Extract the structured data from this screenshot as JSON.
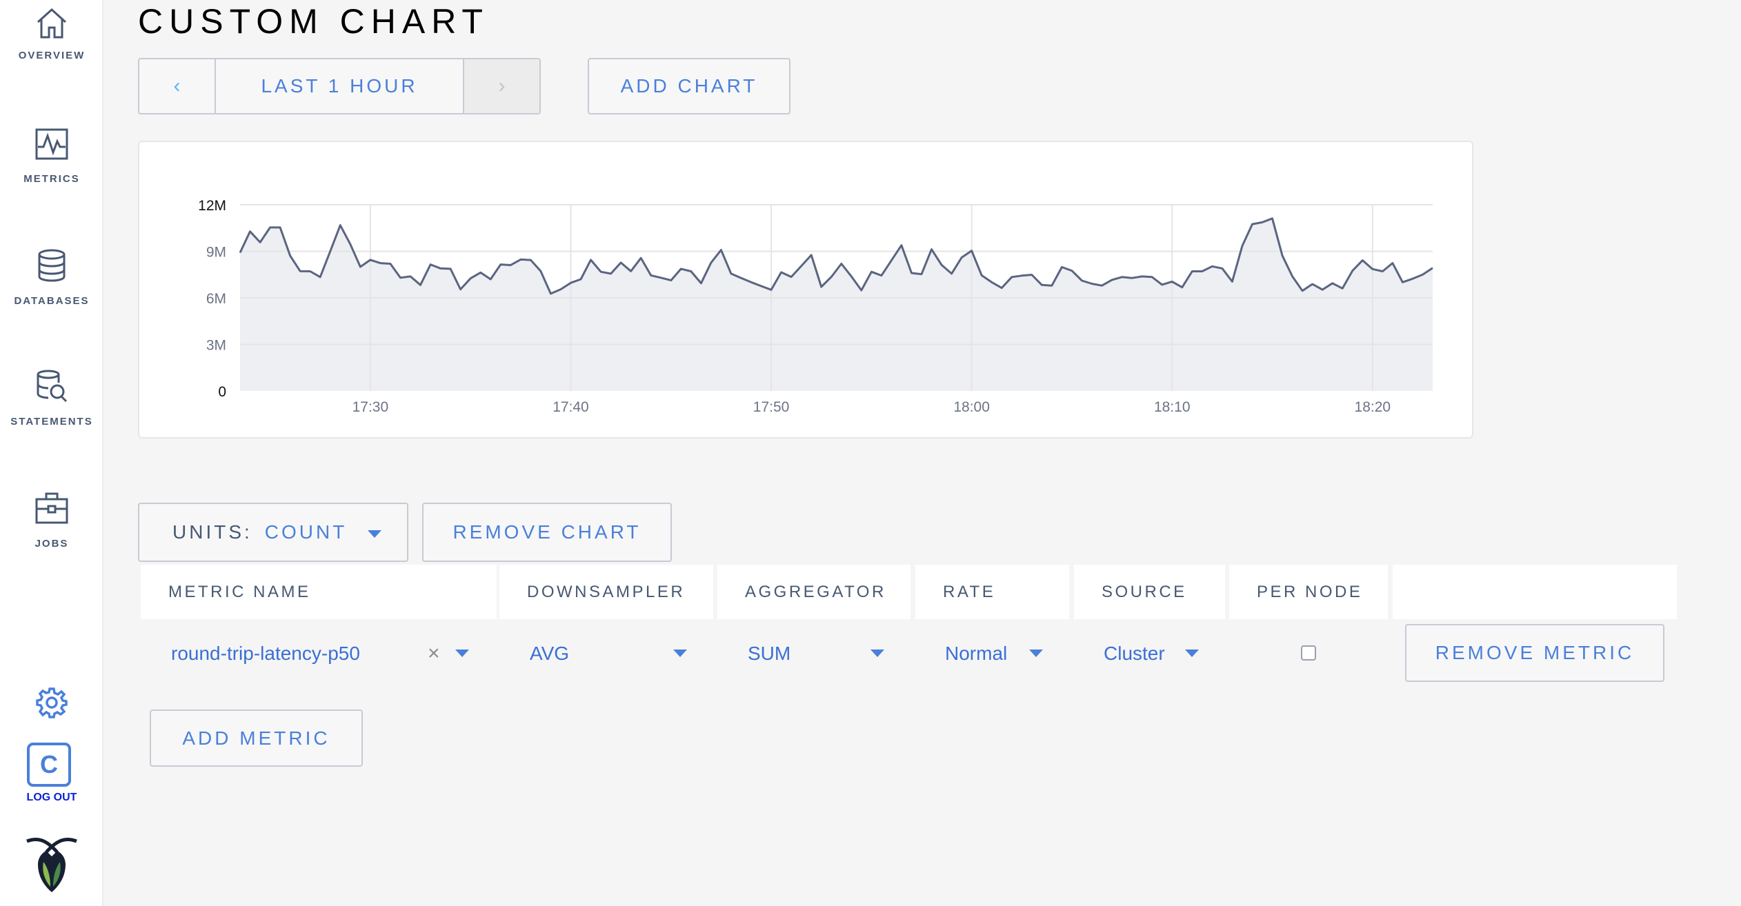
{
  "sidebar": {
    "items": [
      {
        "label": "OVERVIEW",
        "icon": "home-icon"
      },
      {
        "label": "METRICS",
        "icon": "activity-icon"
      },
      {
        "label": "DATABASES",
        "icon": "database-icon"
      },
      {
        "label": "STATEMENTS",
        "icon": "statements-search-icon"
      },
      {
        "label": "JOBS",
        "icon": "briefcase-icon"
      }
    ],
    "settings_icon": "gear-icon",
    "user_initial": "C",
    "logout_label": "LOG OUT",
    "logo": "cockroach-logo"
  },
  "header": {
    "title": "CUSTOM CHART"
  },
  "time_range": {
    "prev": "‹",
    "label": "LAST 1 HOUR",
    "next": "›"
  },
  "add_chart_label": "ADD CHART",
  "units": {
    "label": "UNITS:",
    "value": "COUNT"
  },
  "remove_chart_label": "REMOVE CHART",
  "table": {
    "headers": [
      "METRIC NAME",
      "DOWNSAMPLER",
      "AGGREGATOR",
      "RATE",
      "SOURCE",
      "PER NODE"
    ],
    "row": {
      "metric": "round-trip-latency-p50",
      "clear": "×",
      "downsampler": "AVG",
      "aggregator": "SUM",
      "rate": "Normal",
      "source": "Cluster",
      "per_node": false,
      "remove_label": "REMOVE METRIC"
    }
  },
  "add_metric_label": "ADD METRIC",
  "colors": {
    "accent": "#4a80d9",
    "line": "#5a6580",
    "area": "#eeeff3",
    "grid": "#e4e4e6"
  },
  "chart_data": {
    "type": "area",
    "title": "",
    "xlabel": "",
    "ylabel": "",
    "ylim": [
      0,
      12
    ],
    "xlim": [
      "17:23:30",
      "18:23:00"
    ],
    "grid": true,
    "y_ticks": [
      {
        "value": 0,
        "label": "0"
      },
      {
        "value": 3,
        "label": "3M"
      },
      {
        "value": 6,
        "label": "6M"
      },
      {
        "value": 9,
        "label": "9M"
      },
      {
        "value": 12,
        "label": "12M"
      }
    ],
    "x_ticks": [
      "17:30",
      "17:40",
      "17:50",
      "18:00",
      "18:10",
      "18:20"
    ],
    "series": [
      {
        "x": [
          "17:23:30",
          "17:24:00",
          "17:24:30",
          "17:25:00",
          "17:25:30",
          "17:26:00",
          "17:26:30",
          "17:27:00",
          "17:27:30",
          "17:28:00",
          "17:28:30",
          "17:29:00",
          "17:29:30",
          "17:30:00",
          "17:30:30",
          "17:31:00",
          "17:31:30",
          "17:32:00",
          "17:32:30",
          "17:33:00",
          "17:33:30",
          "17:34:00",
          "17:34:30",
          "17:35:00",
          "17:35:30",
          "17:36:00",
          "17:36:30",
          "17:37:00",
          "17:37:30",
          "17:38:00",
          "17:38:30",
          "17:39:00",
          "17:39:30",
          "17:40:00",
          "17:40:30",
          "17:41:00",
          "17:41:30",
          "17:42:00",
          "17:42:30",
          "17:43:00",
          "17:43:30",
          "17:44:00",
          "17:44:30",
          "17:45:00",
          "17:45:30",
          "17:46:00",
          "17:46:30",
          "17:47:00",
          "17:47:30",
          "17:48:00",
          "17:48:30",
          "17:49:00",
          "17:49:30",
          "17:50:00",
          "17:50:30",
          "17:51:00",
          "17:51:30",
          "17:52:00",
          "17:52:30",
          "17:53:00",
          "17:53:30",
          "17:54:00",
          "17:54:30",
          "17:55:00",
          "17:55:30",
          "17:56:00",
          "17:56:30",
          "17:57:00",
          "17:57:30",
          "17:58:00",
          "17:58:30",
          "17:59:00",
          "17:59:30",
          "18:00:00",
          "18:00:30",
          "18:01:00",
          "18:01:30",
          "18:02:00",
          "18:02:30",
          "18:03:00",
          "18:03:30",
          "18:04:00",
          "18:04:30",
          "18:05:00",
          "18:05:30",
          "18:06:00",
          "18:06:30",
          "18:07:00",
          "18:07:30",
          "18:08:00",
          "18:08:30",
          "18:09:00",
          "18:09:30",
          "18:10:00",
          "18:10:30",
          "18:11:00",
          "18:11:30",
          "18:12:00",
          "18:12:30",
          "18:13:00",
          "18:13:30",
          "18:14:00",
          "18:14:30",
          "18:15:00",
          "18:15:30",
          "18:16:00",
          "18:16:30",
          "18:17:00",
          "18:17:30",
          "18:18:00",
          "18:18:30",
          "18:19:00",
          "18:19:30",
          "18:20:00",
          "18:20:30",
          "18:21:00",
          "18:21:30",
          "18:22:00",
          "18:22:30",
          "18:23:00"
        ],
        "values": [
          8.91,
          10.28,
          9.58,
          10.54,
          10.54,
          8.72,
          7.72,
          7.71,
          7.34,
          9.01,
          10.68,
          9.46,
          8.0,
          8.45,
          8.24,
          8.2,
          7.3,
          7.38,
          6.83,
          8.15,
          7.9,
          7.87,
          6.55,
          7.26,
          7.63,
          7.2,
          8.15,
          8.11,
          8.47,
          8.44,
          7.72,
          6.27,
          6.55,
          6.97,
          7.2,
          8.45,
          7.68,
          7.56,
          8.27,
          7.72,
          8.57,
          7.45,
          7.3,
          7.13,
          7.87,
          7.71,
          6.94,
          8.27,
          9.09,
          7.56,
          7.28,
          7.01,
          6.76,
          6.52,
          7.65,
          7.35,
          8.05,
          8.76,
          6.71,
          7.35,
          8.2,
          7.38,
          6.49,
          7.68,
          7.44,
          8.42,
          9.39,
          7.6,
          7.53,
          9.13,
          8.12,
          7.56,
          8.6,
          9.04,
          7.45,
          7.01,
          6.64,
          7.34,
          7.43,
          7.49,
          6.83,
          6.79,
          7.98,
          7.75,
          7.11,
          6.91,
          6.79,
          7.16,
          7.34,
          7.28,
          7.38,
          7.34,
          6.85,
          7.05,
          6.68,
          7.71,
          7.71,
          8.03,
          7.9,
          7.05,
          9.34,
          10.75,
          10.87,
          11.12,
          8.72,
          7.38,
          6.46,
          6.89,
          6.53,
          6.94,
          6.61,
          7.75,
          8.42,
          7.86,
          7.71,
          8.24,
          7.01,
          7.23,
          7.5,
          7.93
        ]
      }
    ]
  }
}
